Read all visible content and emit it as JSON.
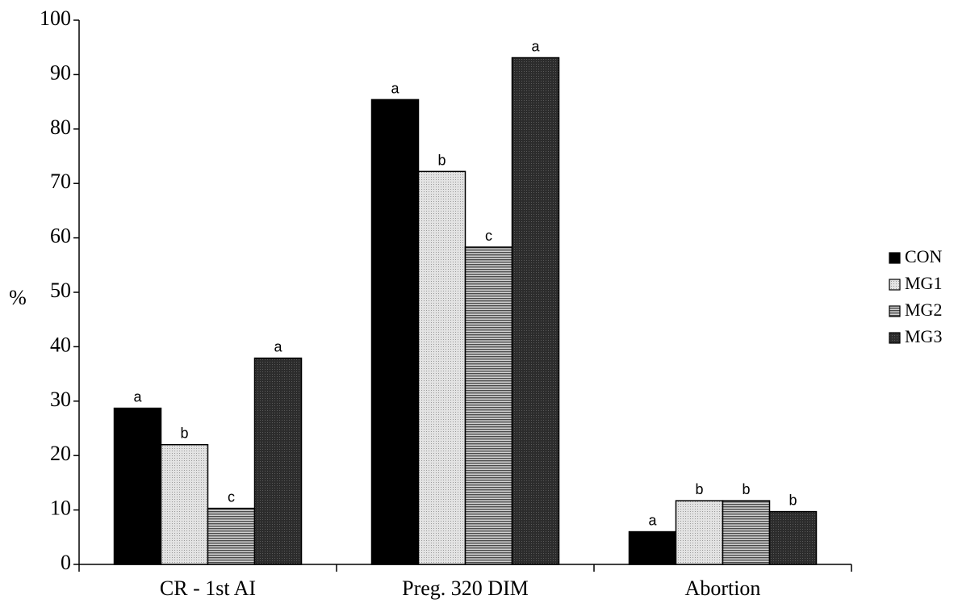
{
  "chart_data": {
    "type": "bar",
    "title": "",
    "xlabel": "",
    "ylabel": "%",
    "ylim": [
      0,
      100
    ],
    "yticks": [
      0,
      10,
      20,
      30,
      40,
      50,
      60,
      70,
      80,
      90,
      100
    ],
    "grid": false,
    "legend_position": "right",
    "categories": [
      "CR - 1st AI",
      "Preg. 320 DIM",
      "Abortion"
    ],
    "series": [
      {
        "name": "CON",
        "values": [
          28.7,
          85.4,
          6.0
        ],
        "labels": [
          "a",
          "a",
          "a"
        ],
        "color": "#000000",
        "pattern": "solid"
      },
      {
        "name": "MG1",
        "values": [
          22.0,
          72.2,
          11.7
        ],
        "labels": [
          "b",
          "b",
          "b"
        ],
        "color": "#d9d9d9",
        "pattern": "dots"
      },
      {
        "name": "MG2",
        "values": [
          10.3,
          58.3,
          11.7
        ],
        "labels": [
          "c",
          "c",
          "b"
        ],
        "color": "#808080",
        "pattern": "hlines"
      },
      {
        "name": "MG3",
        "values": [
          37.9,
          93.1,
          9.7
        ],
        "labels": [
          "a",
          "a",
          "b"
        ],
        "color": "#333333",
        "pattern": "dark-dots"
      }
    ]
  }
}
